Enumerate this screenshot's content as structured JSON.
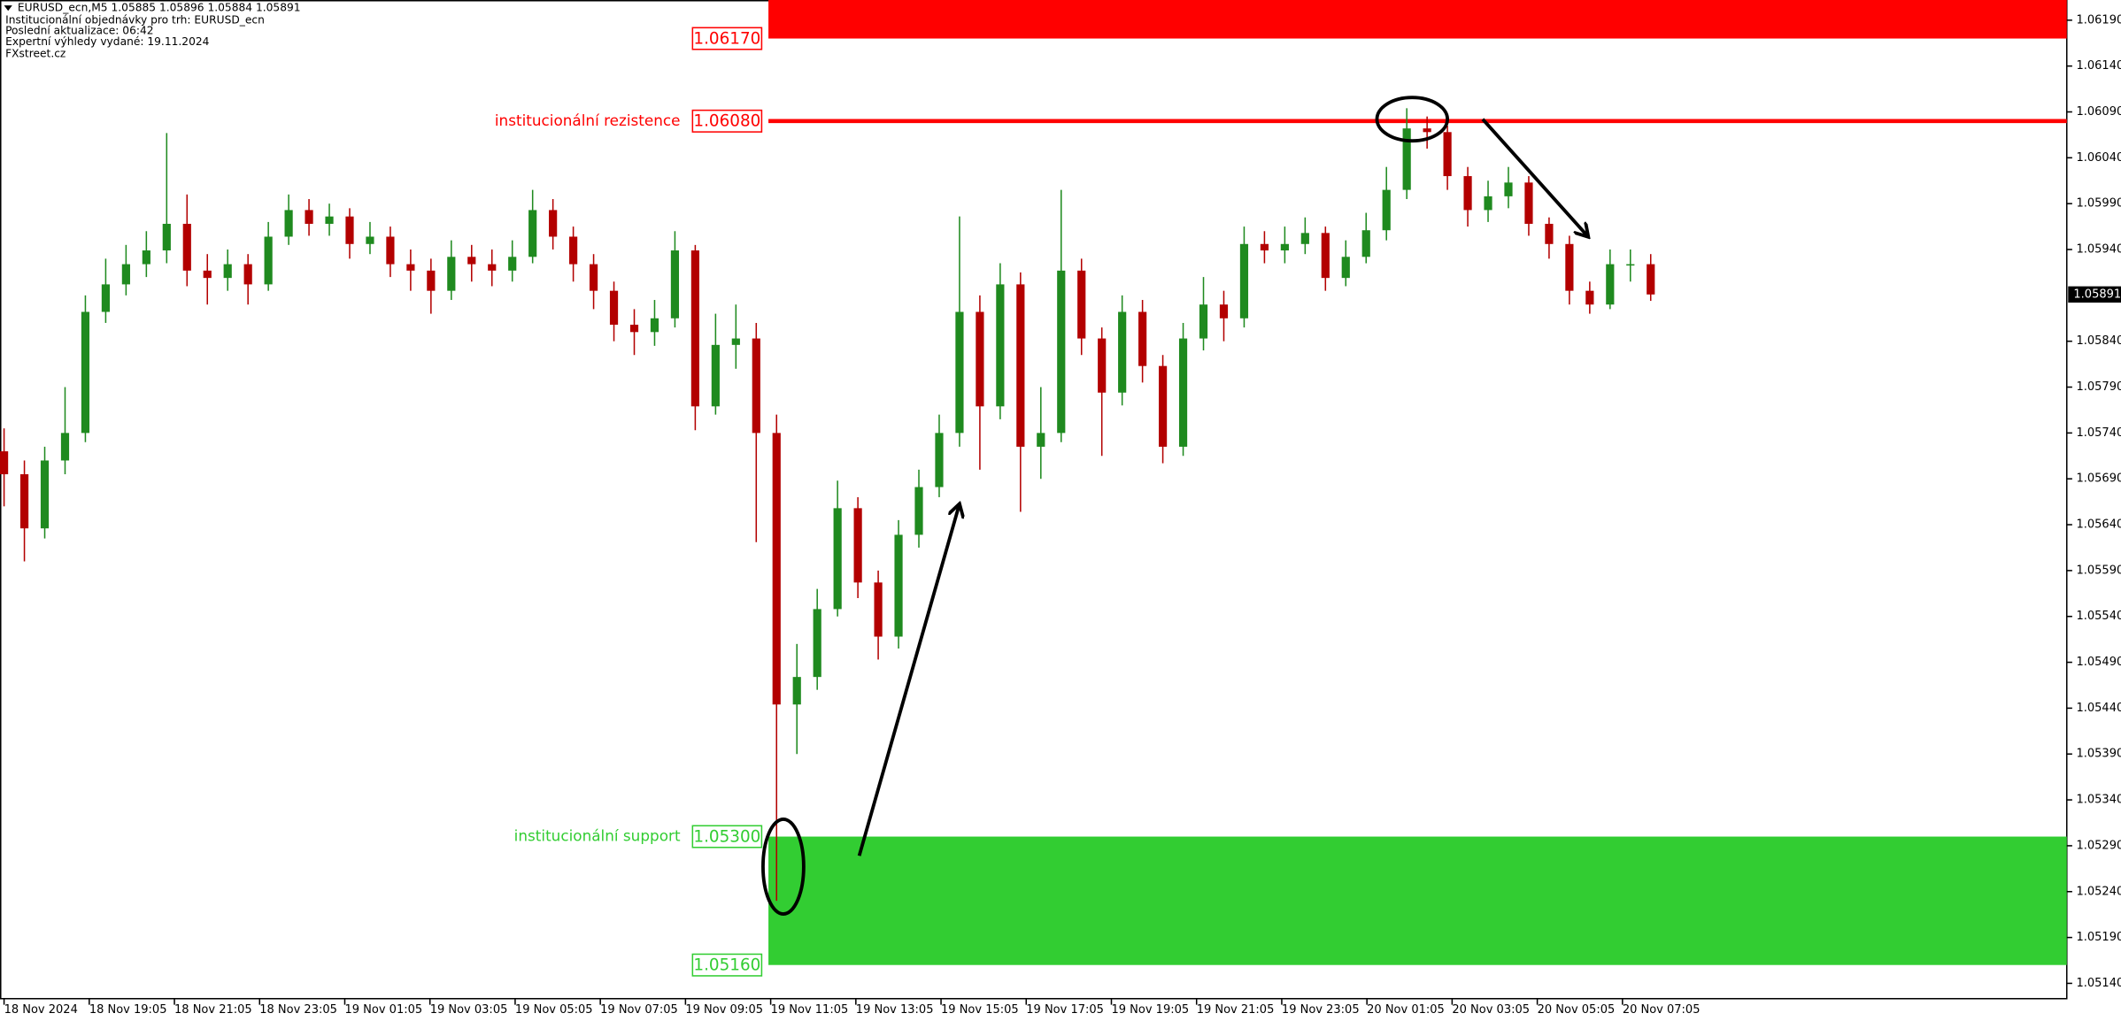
{
  "header": {
    "symbol_line": "EURUSD_ecn,M5  1.05885 1.05896 1.05884 1.05891",
    "lines": [
      "Institucionální objednávky pro trh: EURUSD_ecn",
      "Poslední aktualizace: 06:42",
      "Expertní výhledy vydané: 19.11.2024",
      "FXstreet.cz"
    ]
  },
  "chart_data": {
    "type": "candlestick",
    "up_color": "#1f8a1f",
    "down_color": "#b30000",
    "ylim": [
      1.05127,
      1.06212
    ],
    "yticks": [
      {
        "value": 1.0619,
        "label": "1.06190"
      },
      {
        "value": 1.0614,
        "label": "1.06140"
      },
      {
        "value": 1.0609,
        "label": "1.06090"
      },
      {
        "value": 1.0604,
        "label": "1.06040"
      },
      {
        "value": 1.0599,
        "label": "1.05990"
      },
      {
        "value": 1.0594,
        "label": "1.05940"
      },
      {
        "value": 1.0584,
        "label": "1.05840"
      },
      {
        "value": 1.0579,
        "label": "1.05790"
      },
      {
        "value": 1.0574,
        "label": "1.05740"
      },
      {
        "value": 1.0569,
        "label": "1.05690"
      },
      {
        "value": 1.0564,
        "label": "1.05640"
      },
      {
        "value": 1.0559,
        "label": "1.05590"
      },
      {
        "value": 1.0554,
        "label": "1.05540"
      },
      {
        "value": 1.0549,
        "label": "1.05490"
      },
      {
        "value": 1.0544,
        "label": "1.05440"
      },
      {
        "value": 1.0539,
        "label": "1.05390"
      },
      {
        "value": 1.0534,
        "label": "1.05340"
      },
      {
        "value": 1.0529,
        "label": "1.05290"
      },
      {
        "value": 1.0524,
        "label": "1.05240"
      },
      {
        "value": 1.0519,
        "label": "1.05190"
      },
      {
        "value": 1.0514,
        "label": "1.05140"
      }
    ],
    "xtick_labels": [
      "18 Nov 2024",
      "18 Nov 19:05",
      "18 Nov 21:05",
      "18 Nov 23:05",
      "19 Nov 01:05",
      "19 Nov 03:05",
      "19 Nov 05:05",
      "19 Nov 07:05",
      "19 Nov 09:05",
      "19 Nov 11:05",
      "19 Nov 13:05",
      "19 Nov 15:05",
      "19 Nov 17:05",
      "19 Nov 19:05",
      "19 Nov 21:05",
      "19 Nov 23:05",
      "20 Nov 01:05",
      "20 Nov 03:05",
      "20 Nov 05:05",
      "20 Nov 07:05"
    ],
    "open": [
      1.0572,
      1.05695,
      1.05636,
      1.0571,
      1.0574,
      1.05872,
      1.05902,
      1.05924,
      1.05939,
      1.05968,
      1.05917,
      1.05909,
      1.05924,
      1.05902,
      1.05954,
      1.05983,
      1.05968,
      1.05976,
      1.05946,
      1.05954,
      1.05924,
      1.05917,
      1.05895,
      1.05932,
      1.05924,
      1.05917,
      1.05932,
      1.05983,
      1.05954,
      1.05924,
      1.05895,
      1.05858,
      1.0585,
      1.05865,
      1.05939,
      1.05769,
      1.05836,
      1.05843,
      1.0574,
      1.05444,
      1.05474,
      1.05548,
      1.05658,
      1.05577,
      1.05518,
      1.05629,
      1.05681,
      1.0574,
      1.05872,
      1.05769,
      1.05902,
      1.05725,
      1.0574,
      1.05917,
      1.05843,
      1.05784,
      1.05872,
      1.05813,
      1.05725,
      1.05843,
      1.0588,
      1.05865,
      1.05946,
      1.05939,
      1.05946,
      1.05958,
      1.05909,
      1.05932,
      1.05961,
      1.06005,
      1.06072,
      1.06068,
      1.0602,
      1.05983,
      1.05998,
      1.06013,
      1.05968,
      1.05946,
      1.05895,
      1.0588,
      1.05924,
      1.05924
    ],
    "high": [
      1.05745,
      1.0571,
      1.05725,
      1.0579,
      1.0589,
      1.0593,
      1.05945,
      1.0596,
      1.06067,
      1.06,
      1.05935,
      1.0594,
      1.05935,
      1.0597,
      1.06,
      1.05995,
      1.0599,
      1.05985,
      1.0597,
      1.05965,
      1.0594,
      1.0593,
      1.0595,
      1.05945,
      1.0594,
      1.0595,
      1.06005,
      1.05995,
      1.05965,
      1.05935,
      1.05905,
      1.05875,
      1.05885,
      1.0596,
      1.05945,
      1.0587,
      1.0588,
      1.0586,
      1.0576,
      1.0551,
      1.0557,
      1.05688,
      1.0567,
      1.0559,
      1.05645,
      1.057,
      1.0576,
      1.05976,
      1.0589,
      1.05925,
      1.05915,
      1.0579,
      1.06005,
      1.0593,
      1.05855,
      1.0589,
      1.05885,
      1.05825,
      1.0586,
      1.0591,
      1.05895,
      1.05965,
      1.0596,
      1.05965,
      1.05975,
      1.05965,
      1.0595,
      1.0598,
      1.0603,
      1.06094,
      1.06085,
      1.06075,
      1.0603,
      1.06015,
      1.0603,
      1.0602,
      1.05975,
      1.05955,
      1.05905,
      1.0594,
      1.0594,
      1.05935
    ],
    "low": [
      1.0566,
      1.056,
      1.05625,
      1.05695,
      1.0573,
      1.0586,
      1.0589,
      1.0591,
      1.05925,
      1.059,
      1.0588,
      1.05895,
      1.0588,
      1.05895,
      1.05945,
      1.05955,
      1.05955,
      1.0593,
      1.05935,
      1.0591,
      1.05895,
      1.0587,
      1.05885,
      1.05905,
      1.059,
      1.05905,
      1.05925,
      1.0594,
      1.05905,
      1.05875,
      1.0584,
      1.05825,
      1.05835,
      1.05855,
      1.05743,
      1.0576,
      1.0581,
      1.05621,
      1.0523,
      1.0539,
      1.0546,
      1.0554,
      1.0556,
      1.05493,
      1.05505,
      1.05615,
      1.0567,
      1.05725,
      1.057,
      1.05755,
      1.05654,
      1.0569,
      1.0573,
      1.05825,
      1.05715,
      1.0577,
      1.05795,
      1.05707,
      1.05715,
      1.0583,
      1.0584,
      1.05855,
      1.05925,
      1.05925,
      1.05935,
      1.05895,
      1.059,
      1.05925,
      1.0595,
      1.05995,
      1.0605,
      1.06005,
      1.05965,
      1.0597,
      1.05985,
      1.05955,
      1.0593,
      1.0588,
      1.0587,
      1.05875,
      1.05905,
      1.05884
    ],
    "close": [
      1.05695,
      1.05636,
      1.0571,
      1.0574,
      1.05872,
      1.05902,
      1.05924,
      1.05939,
      1.05968,
      1.05917,
      1.05909,
      1.05924,
      1.05902,
      1.05954,
      1.05983,
      1.05968,
      1.05976,
      1.05946,
      1.05954,
      1.05924,
      1.05917,
      1.05895,
      1.05932,
      1.05924,
      1.05917,
      1.05932,
      1.05983,
      1.05954,
      1.05924,
      1.05895,
      1.05858,
      1.0585,
      1.05865,
      1.05939,
      1.05769,
      1.05836,
      1.05843,
      1.0574,
      1.05444,
      1.05474,
      1.05548,
      1.05658,
      1.05577,
      1.05518,
      1.05629,
      1.05681,
      1.0574,
      1.05872,
      1.05769,
      1.05902,
      1.05725,
      1.0574,
      1.05917,
      1.05843,
      1.05784,
      1.05872,
      1.05813,
      1.05725,
      1.05843,
      1.0588,
      1.05865,
      1.05946,
      1.05939,
      1.05946,
      1.05958,
      1.05909,
      1.05932,
      1.05961,
      1.06005,
      1.06072,
      1.06068,
      1.0602,
      1.05983,
      1.05998,
      1.06013,
      1.05968,
      1.05946,
      1.05895,
      1.0588,
      1.05924,
      1.05924,
      1.05891
    ],
    "resistance_color": "#ff0000",
    "support_color": "#32cd32",
    "levels": [
      {
        "value": 1.0617,
        "label": "1.06170"
      },
      {
        "value": 1.0608,
        "label": "1.06080"
      },
      {
        "value": 1.053,
        "label": "1.05300"
      },
      {
        "value": 1.0516,
        "label": "1.05160"
      }
    ],
    "resistance_label": "institucionální rezistence",
    "support_label": "institucionální support"
  }
}
